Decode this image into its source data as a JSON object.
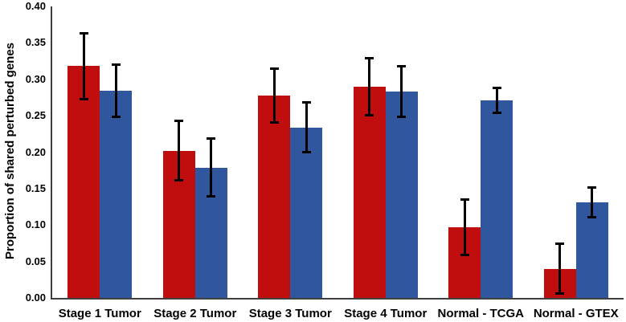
{
  "chart_data": {
    "type": "bar",
    "title": "",
    "xlabel": "",
    "ylabel": "Proportion of shared perturbed genes",
    "ylim": [
      0,
      0.4
    ],
    "ytick_step": 0.05,
    "ytick_labels": [
      "0.00",
      "0.05",
      "0.10",
      "0.15",
      "0.20",
      "0.25",
      "0.30",
      "0.35",
      "0.40"
    ],
    "grid": false,
    "legend_position": "none",
    "categories": [
      "Stage 1 Tumor",
      "Stage 2 Tumor",
      "Stage 3 Tumor",
      "Stage 4 Tumor",
      "Normal - TCGA",
      "Normal - GTEX"
    ],
    "series": [
      {
        "name": "red-bars",
        "color": "#C00D0D",
        "values": [
          0.318,
          0.202,
          0.278,
          0.29,
          0.097,
          0.04
        ],
        "errors": [
          0.045,
          0.041,
          0.037,
          0.039,
          0.038,
          0.034
        ]
      },
      {
        "name": "blue-bars",
        "color": "#30569D",
        "values": [
          0.284,
          0.179,
          0.234,
          0.283,
          0.271,
          0.131
        ],
        "errors": [
          0.036,
          0.04,
          0.034,
          0.035,
          0.017,
          0.02
        ]
      }
    ],
    "error_bar_color": "#000000",
    "axis_color": "#3F3F3F",
    "background_color": "#FFFFFF"
  }
}
